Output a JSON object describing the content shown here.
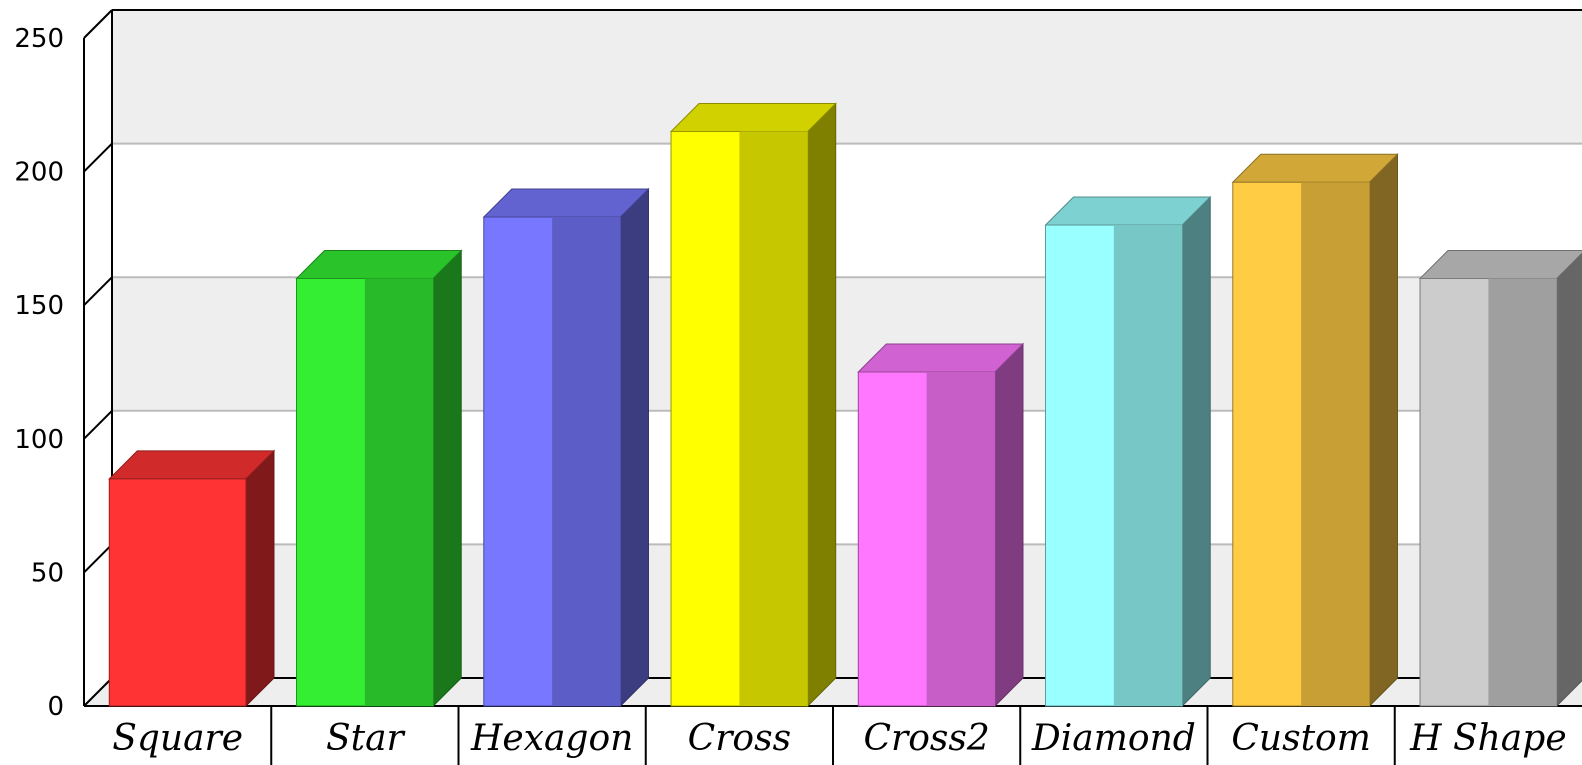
{
  "chart_data": {
    "type": "bar",
    "categories": [
      "Square",
      "Star",
      "Hexagon",
      "Cross",
      "Cross2",
      "Diamond",
      "Custom",
      "H Shape"
    ],
    "values": [
      85,
      160,
      183,
      215,
      125,
      180,
      196,
      160
    ],
    "series_colors": [
      "#ff3333",
      "#33ee33",
      "#7777ff",
      "#ffff00",
      "#ff77ff",
      "#99ffff",
      "#ffcc44",
      "#cccccc"
    ],
    "shapes": [
      "square",
      "star",
      "hexagon",
      "cross",
      "cross2",
      "diamond",
      "custom",
      "h-shape"
    ],
    "yticks": [
      0,
      50,
      100,
      150,
      200,
      250
    ],
    "ylim": [
      0,
      250
    ],
    "grid": true,
    "background_bands": [
      "#eeeeee",
      "#ffffff"
    ],
    "title": "",
    "xlabel": "",
    "ylabel": ""
  }
}
